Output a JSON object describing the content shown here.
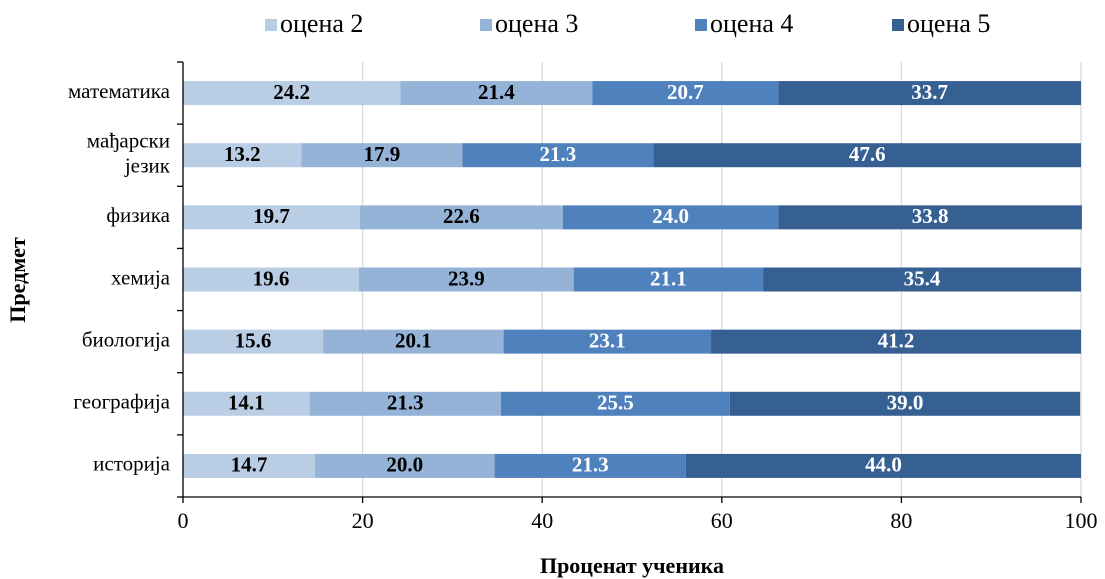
{
  "chart_data": {
    "type": "stacked_bar_horizontal",
    "xlabel": "Проценат ученика",
    "ylabel": "Предмет",
    "categories": [
      "математика",
      "мађарски језик",
      "физика",
      "хемија",
      "биологија",
      "географија",
      "историја"
    ],
    "series": [
      {
        "name": "оцена 2",
        "color": "#b9cde5",
        "label_color": "#000000",
        "values": [
          24.2,
          13.2,
          19.7,
          19.6,
          15.6,
          14.1,
          14.7
        ],
        "value_labels": [
          "24.2",
          "13.2",
          "19.7",
          "19.6",
          "15.6",
          "14.1",
          "14.7"
        ]
      },
      {
        "name": "оцена 3",
        "color": "#95b3d7",
        "label_color": "#000000",
        "values": [
          21.4,
          17.9,
          22.6,
          23.9,
          20.1,
          21.3,
          20.0
        ],
        "value_labels": [
          "21.4",
          "17.9",
          "22.6",
          "23.9",
          "20.1",
          "21.3",
          "20.0"
        ]
      },
      {
        "name": "оцена 4",
        "color": "#4f81bd",
        "label_color": "#ffffff",
        "values": [
          20.7,
          21.3,
          24.0,
          21.1,
          23.1,
          25.5,
          21.3
        ],
        "value_labels": [
          "20.7",
          "21.3",
          "24.0",
          "21.1",
          "23.1",
          "25.5",
          "21.3"
        ]
      },
      {
        "name": "оцена 5",
        "color": "#376092",
        "label_color": "#ffffff",
        "values": [
          33.7,
          47.6,
          33.8,
          35.4,
          41.2,
          39.0,
          44.0
        ],
        "value_labels": [
          "33.7",
          "47.6",
          "33.8",
          "35.4",
          "41.2",
          "39.0",
          "44.0"
        ]
      }
    ],
    "xlim": [
      0,
      100
    ],
    "xticks": [
      0,
      20,
      40,
      60,
      80,
      100
    ],
    "grid": true,
    "legend": "top"
  }
}
